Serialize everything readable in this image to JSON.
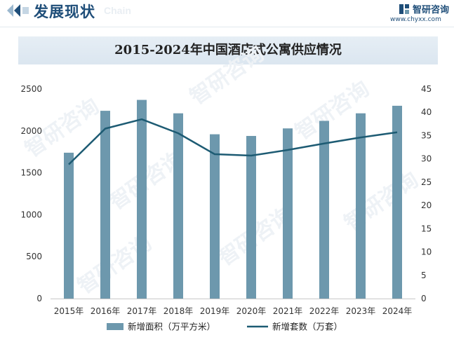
{
  "header": {
    "label": "发展现状",
    "watermark_word": "Chain",
    "brand_name": "智研咨询",
    "brand_url": "www.chyxx.com"
  },
  "colors": {
    "bar": "#6d98ad",
    "line": "#1d5b73",
    "header": "#1f4e79",
    "title_bg": "#dfe8f1"
  },
  "chart_data": {
    "type": "bar",
    "title": "2015-2024年中国酒店式公寓供应情况",
    "categories": [
      "2015年",
      "2016年",
      "2017年",
      "2018年",
      "2019年",
      "2020年",
      "2021年",
      "2022年",
      "2023年",
      "2024年"
    ],
    "series": [
      {
        "name": "新增面积（万平方米）",
        "type": "bar",
        "axis": "left",
        "values": [
          1740,
          2240,
          2370,
          2210,
          1960,
          1940,
          2030,
          2120,
          2210,
          2300
        ]
      },
      {
        "name": "新增套数（万套）",
        "type": "line",
        "axis": "right",
        "values": [
          28.8,
          36.5,
          38.5,
          35.5,
          31.0,
          30.7,
          31.9,
          33.3,
          34.6,
          35.7
        ]
      }
    ],
    "ylim_left": [
      0,
      2500
    ],
    "yticks_left": [
      0,
      500,
      1000,
      1500,
      2000,
      2500
    ],
    "ylim_right": [
      0,
      45
    ],
    "yticks_right": [
      0,
      5,
      10,
      15,
      20,
      25,
      30,
      35,
      40,
      45
    ],
    "grid": false,
    "legend_position": "bottom"
  }
}
